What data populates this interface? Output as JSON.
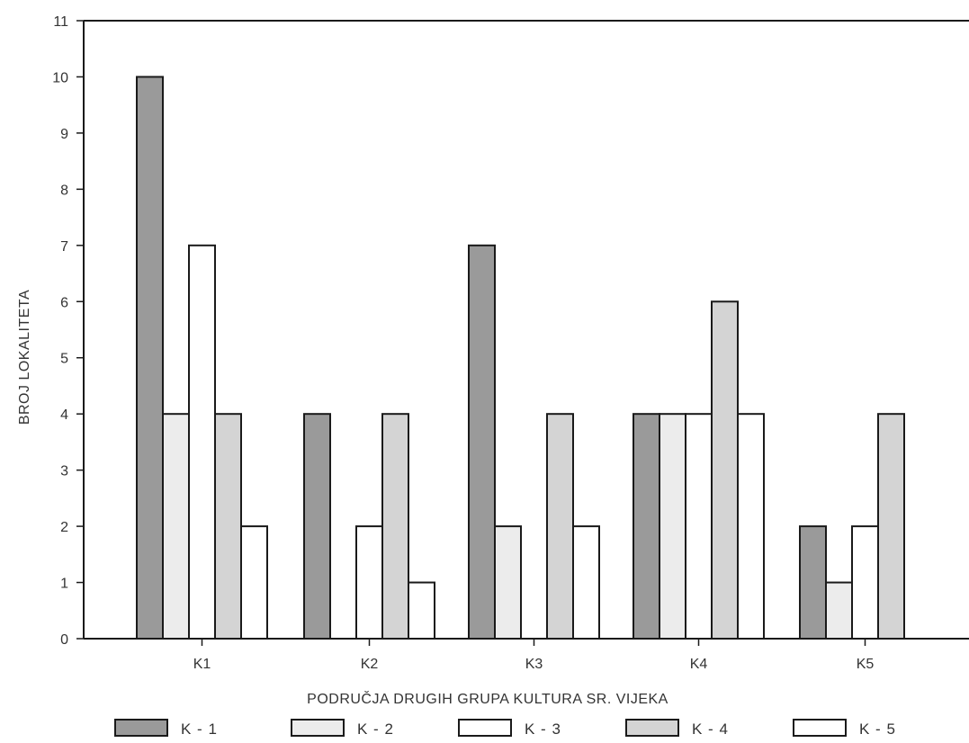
{
  "chart_data": {
    "type": "bar",
    "title": "",
    "xlabel": "PODRUČJA DRUGIH GRUPA KULTURA SR. VIJEKA",
    "ylabel": "BROJ LOKALITETA",
    "ylim": [
      0,
      11
    ],
    "yticks": [
      0,
      1,
      2,
      3,
      4,
      5,
      6,
      7,
      8,
      9,
      10,
      11
    ],
    "categories": [
      "K1",
      "K2",
      "K3",
      "K4",
      "K5"
    ],
    "series": [
      {
        "name": "K - 1",
        "color": "#9a9a9a",
        "values": [
          10,
          4,
          7,
          4,
          2
        ]
      },
      {
        "name": "K - 2",
        "color": "#ececec",
        "values": [
          4,
          0,
          2,
          4,
          1
        ]
      },
      {
        "name": "K - 3",
        "color": "#ffffff",
        "values": [
          7,
          2,
          0,
          4,
          2
        ]
      },
      {
        "name": "K - 4",
        "color": "#d4d4d4",
        "values": [
          4,
          4,
          4,
          6,
          4
        ]
      },
      {
        "name": "K - 5",
        "color": "#ffffff",
        "values": [
          2,
          1,
          2,
          4,
          0
        ]
      }
    ],
    "grid": false,
    "legend": "bottom"
  }
}
